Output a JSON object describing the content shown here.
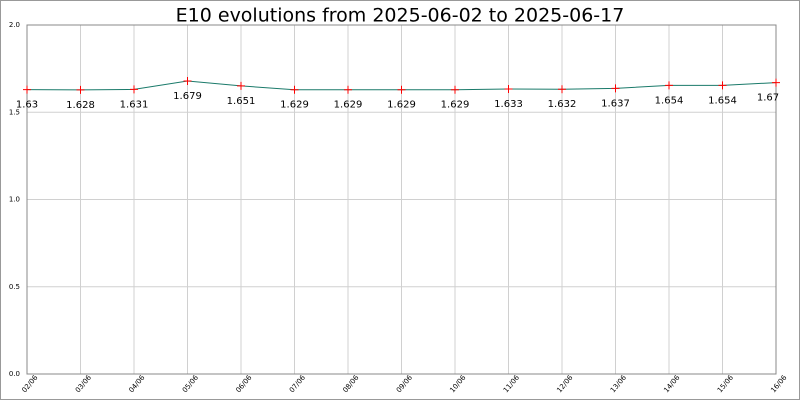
{
  "chart_data": {
    "type": "line",
    "title": "E10 evolutions from 2025-06-02 to 2025-06-17",
    "categories": [
      "02/06",
      "03/06",
      "04/06",
      "05/06",
      "06/06",
      "07/06",
      "08/06",
      "09/06",
      "10/06",
      "11/06",
      "12/06",
      "13/06",
      "14/06",
      "15/06",
      "16/06"
    ],
    "values": [
      1.63,
      1.628,
      1.631,
      1.679,
      1.651,
      1.629,
      1.629,
      1.629,
      1.629,
      1.633,
      1.632,
      1.637,
      1.654,
      1.654,
      1.67
    ],
    "color": "#1a7a6a",
    "marker_color": "#ff0000",
    "ylim": [
      0,
      2.0
    ],
    "yticks": [
      {
        "value": 0,
        "label": "0.0"
      },
      {
        "value": 0.5,
        "label": "0.5"
      },
      {
        "value": 1,
        "label": "1.0"
      },
      {
        "value": 1.5,
        "label": "1.5"
      },
      {
        "value": 2,
        "label": "2.0"
      }
    ],
    "grid": true
  }
}
